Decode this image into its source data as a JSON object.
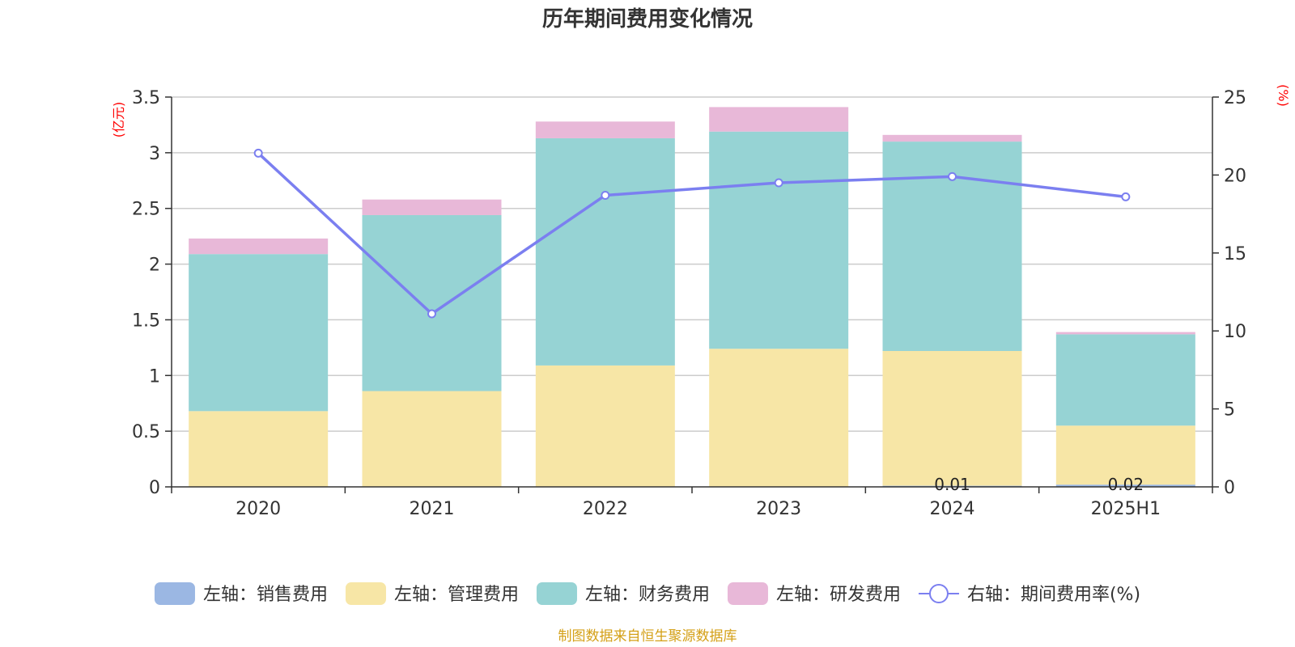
{
  "chart_data": {
    "type": "bar",
    "title": "历年期间费用变化情况",
    "categories": [
      "2020",
      "2021",
      "2022",
      "2023",
      "2024",
      "2025H1"
    ],
    "left_axis": {
      "unit": "(亿元)",
      "ylim": [
        0,
        3.5
      ],
      "ticks": [
        "0",
        "0.5",
        "1",
        "1.5",
        "2",
        "2.5",
        "3",
        "3.5"
      ],
      "tick_values": [
        0,
        0.5,
        1,
        1.5,
        2,
        2.5,
        3,
        3.5
      ]
    },
    "right_axis": {
      "unit": "(%)",
      "ylim": [
        0,
        25
      ],
      "ticks": [
        "0",
        "5",
        "10",
        "15",
        "20",
        "25"
      ],
      "tick_values": [
        0,
        5,
        10,
        15,
        20,
        25
      ]
    },
    "series": [
      {
        "name": "左轴：销售费用",
        "kind": "bar",
        "axis": "left",
        "color": "#9bb7e3",
        "values": [
          0,
          0,
          0,
          0,
          0.01,
          0.02
        ],
        "labels": [
          "",
          "",
          "",
          "",
          "0.01",
          "0.02"
        ]
      },
      {
        "name": "左轴：管理费用",
        "kind": "bar",
        "axis": "left",
        "color": "#f7e6a6",
        "values": [
          0.68,
          0.86,
          1.09,
          1.24,
          1.21,
          0.53
        ]
      },
      {
        "name": "左轴：财务费用",
        "kind": "bar",
        "axis": "left",
        "color": "#96d3d4",
        "values": [
          1.41,
          1.58,
          2.04,
          1.95,
          1.88,
          0.82
        ]
      },
      {
        "name": "左轴：研发费用",
        "kind": "bar",
        "axis": "left",
        "color": "#e8b8d8",
        "values": [
          0.14,
          0.14,
          0.15,
          0.22,
          0.06,
          0.02
        ]
      },
      {
        "name": "右轴：期间费用率(%)",
        "kind": "line",
        "axis": "right",
        "color": "#7b7ff0",
        "values": [
          21.4,
          11.1,
          18.7,
          19.5,
          19.9,
          18.6
        ]
      }
    ],
    "grid": true,
    "legend_position": "bottom"
  },
  "source": "制图数据来自恒生聚源数据库"
}
